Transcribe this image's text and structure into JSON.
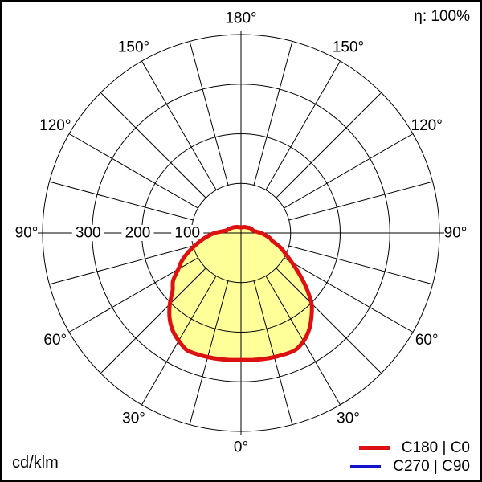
{
  "header": {
    "efficiency_label": "η: 100%"
  },
  "footer": {
    "unit_label": "cd/klm"
  },
  "legend": {
    "items": [
      {
        "label": "C180 | C0",
        "color": "#dd1111",
        "thickness": 5
      },
      {
        "label": "C270 | C90",
        "color": "#1414cc",
        "thickness": 4
      }
    ]
  },
  "chart_data": {
    "type": "polar_intensity_distribution",
    "units": "cd/klm",
    "efficiency_text": "η: 100%",
    "grid": {
      "rings": [
        100,
        200,
        300,
        400
      ],
      "radial_axis_max": 400,
      "spoke_step_deg": 15,
      "ring_tick_labels": [
        {
          "text": "300",
          "value": 300
        },
        {
          "text": "200",
          "value": 200
        },
        {
          "text": "100",
          "value": 100
        }
      ],
      "angle_labels": [
        {
          "text": "180°",
          "theta": 180,
          "side": 0
        },
        {
          "text": "150°",
          "theta": 150,
          "side": -1
        },
        {
          "text": "150°",
          "theta": 150,
          "side": 1
        },
        {
          "text": "120°",
          "theta": 120,
          "side": -1
        },
        {
          "text": "120°",
          "theta": 120,
          "side": 1
        },
        {
          "text": "90°",
          "theta": 90,
          "side": -1
        },
        {
          "text": "90°",
          "theta": 90,
          "side": 1
        },
        {
          "text": "60°",
          "theta": 60,
          "side": -1
        },
        {
          "text": "60°",
          "theta": 60,
          "side": 1
        },
        {
          "text": "30°",
          "theta": 30,
          "side": -1
        },
        {
          "text": "30°",
          "theta": 30,
          "side": 1
        },
        {
          "text": "0°",
          "theta": 0,
          "side": 0
        }
      ]
    },
    "series": [
      {
        "name": "C180 | C0",
        "stroke_color": "#dd1111",
        "fill_color": "#ffff99",
        "visible": true,
        "gamma_deg": [
          0,
          5,
          10,
          15,
          20,
          25,
          30,
          35,
          40,
          45,
          50,
          55,
          60,
          65,
          70,
          75,
          80,
          85,
          90,
          95,
          100,
          105,
          110,
          120,
          135,
          150,
          165,
          180
        ],
        "c180_values": [
          256,
          257,
          258,
          259,
          260,
          260,
          251,
          240,
          224,
          203,
          180,
          167,
          146,
          131,
          113,
          95,
          80,
          66,
          53,
          38,
          30,
          27,
          25,
          21,
          17,
          14,
          12,
          11
        ],
        "c0_values": [
          256,
          257,
          258,
          259,
          260,
          260,
          252,
          239,
          221,
          201,
          172,
          143,
          118,
          99,
          84,
          67,
          59,
          49,
          40,
          31,
          26,
          24,
          23,
          20,
          16,
          14,
          12,
          11
        ]
      },
      {
        "name": "C270 | C90",
        "stroke_color": "#1414cc",
        "visible": false
      }
    ]
  }
}
